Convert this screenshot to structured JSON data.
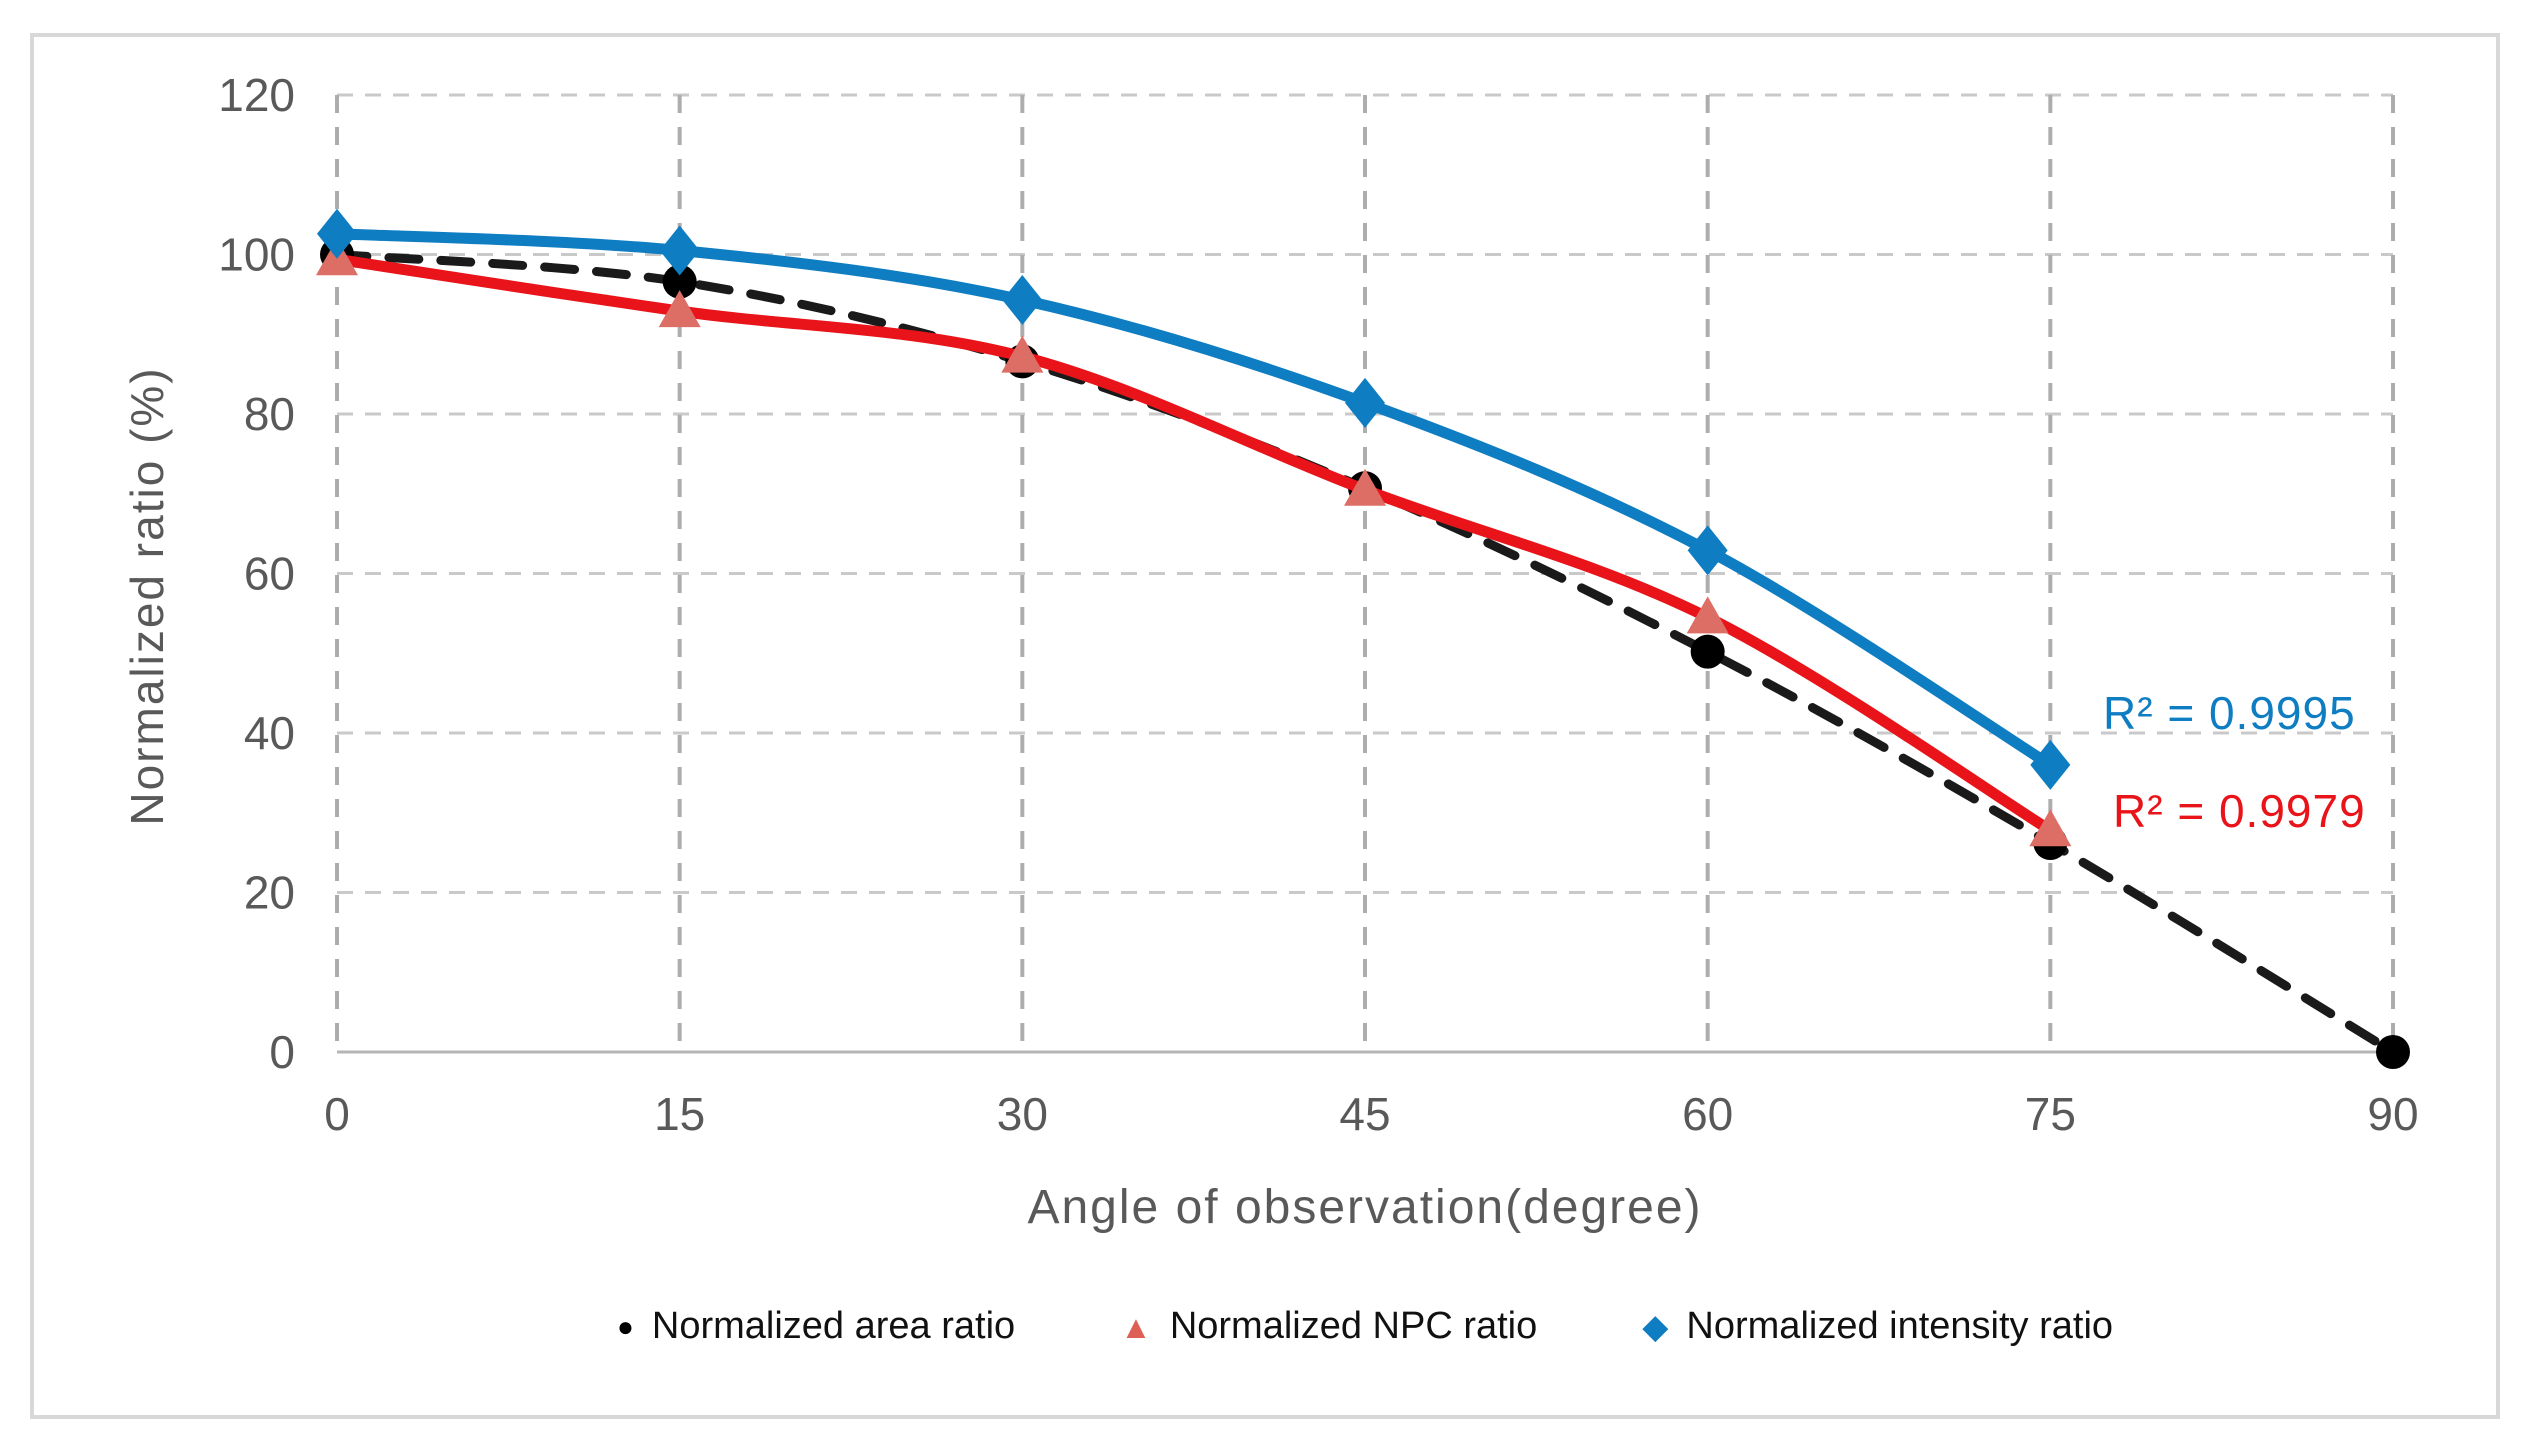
{
  "figure": {
    "y_axis_label": "Normalized ratio (%)",
    "x_axis_label": "Angle of observation(degree)"
  },
  "chart_data": {
    "type": "scatter",
    "title": "",
    "xlabel": "Angle of observation(degree)",
    "ylabel": "Normalized ratio (%)",
    "xlim": [
      0,
      90
    ],
    "ylim": [
      0,
      120
    ],
    "x_ticks": [
      0,
      15,
      30,
      45,
      60,
      75,
      90
    ],
    "y_ticks": [
      0,
      20,
      40,
      60,
      80,
      100,
      120
    ],
    "grid": true,
    "legend_position": "bottom",
    "series": [
      {
        "name": "Normalized area ratio",
        "marker": "circle",
        "line_style": "dashed",
        "line_color": "#1a1a1a",
        "marker_color": "#000000",
        "x": [
          0,
          15,
          30,
          45,
          60,
          75,
          90
        ],
        "values": [
          100,
          96.6,
          86.6,
          70.7,
          50.2,
          26.2,
          0
        ]
      },
      {
        "name": "Normalized NPC ratio",
        "marker": "triangle",
        "line_style": "solid",
        "line_color": "#e8141a",
        "marker_color": "#dc6e65",
        "x": [
          0,
          15,
          30,
          45,
          60,
          75
        ],
        "values": [
          99.4,
          92.9,
          87.2,
          70.5,
          54.5,
          27.8
        ]
      },
      {
        "name": "Normalized intensity ratio",
        "marker": "diamond",
        "line_style": "solid",
        "line_color": "#0f7dc2",
        "marker_color": "#0f7dc2",
        "x": [
          0,
          15,
          30,
          45,
          60,
          75
        ],
        "values": [
          102.6,
          100.5,
          94.3,
          81.4,
          62.9,
          36.0
        ]
      }
    ],
    "annotations": [
      {
        "text": "R² = 0.9995",
        "series": "Normalized intensity ratio",
        "color": "#0f7dc2"
      },
      {
        "text": "R² = 0.9979",
        "series": "Normalized NPC ratio",
        "color": "#e8141a"
      }
    ]
  }
}
